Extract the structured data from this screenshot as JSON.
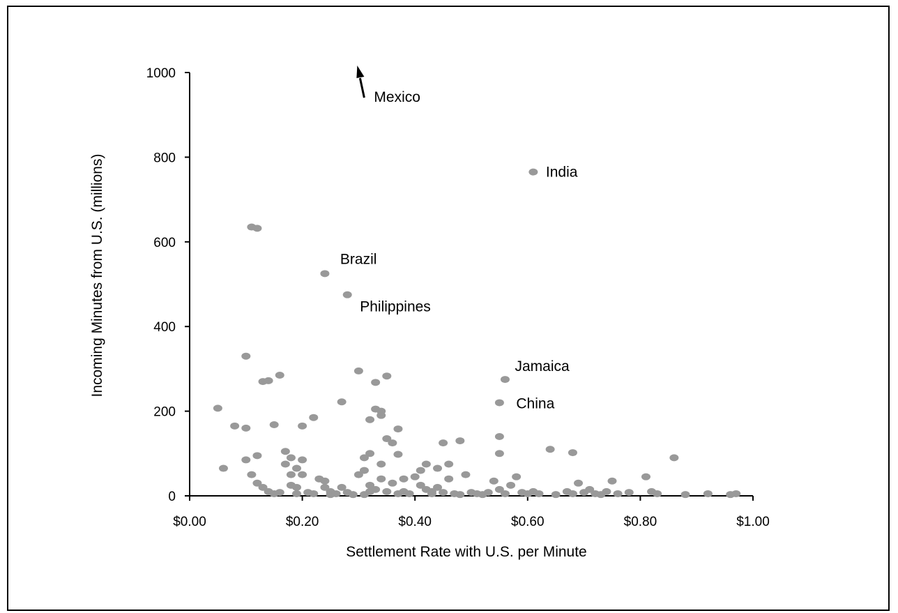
{
  "chart_data": {
    "type": "scatter",
    "title": "",
    "xlabel": "Settlement Rate with U.S. per Minute",
    "ylabel": "Incoming Minutes from U.S. (millions)",
    "xlim": [
      0,
      1
    ],
    "ylim": [
      0,
      1000
    ],
    "x_ticks": [
      {
        "value": 0.0,
        "label": "$0.00"
      },
      {
        "value": 0.2,
        "label": "$0.20"
      },
      {
        "value": 0.4,
        "label": "$0.40"
      },
      {
        "value": 0.6,
        "label": "$0.60"
      },
      {
        "value": 0.8,
        "label": "$0.80"
      },
      {
        "value": 1.0,
        "label": "$1.00"
      }
    ],
    "y_ticks": [
      {
        "value": 0,
        "label": "0"
      },
      {
        "value": 200,
        "label": "200"
      },
      {
        "value": 400,
        "label": "400"
      },
      {
        "value": 600,
        "label": "600"
      },
      {
        "value": 800,
        "label": "800"
      },
      {
        "value": 1000,
        "label": "1000"
      }
    ],
    "grid": false,
    "marker_color": "#999999",
    "labeled_points": [
      {
        "name": "India",
        "x": 0.61,
        "y": 765
      },
      {
        "name": "Brazil",
        "x": 0.24,
        "y": 525
      },
      {
        "name": "Philippines",
        "x": 0.28,
        "y": 475
      },
      {
        "name": "Jamaica",
        "x": 0.56,
        "y": 275
      },
      {
        "name": "China",
        "x": 0.55,
        "y": 220
      }
    ],
    "offscale_point": {
      "name": "Mexico",
      "x": 0.3,
      "y_direction": "above 1000"
    },
    "points": [
      [
        0.05,
        207
      ],
      [
        0.06,
        65
      ],
      [
        0.08,
        165
      ],
      [
        0.1,
        160
      ],
      [
        0.1,
        330
      ],
      [
        0.1,
        85
      ],
      [
        0.11,
        635
      ],
      [
        0.12,
        632
      ],
      [
        0.11,
        50
      ],
      [
        0.12,
        95
      ],
      [
        0.12,
        30
      ],
      [
        0.13,
        270
      ],
      [
        0.13,
        20
      ],
      [
        0.14,
        272
      ],
      [
        0.14,
        10
      ],
      [
        0.15,
        168
      ],
      [
        0.15,
        5
      ],
      [
        0.16,
        285
      ],
      [
        0.16,
        8
      ],
      [
        0.17,
        105
      ],
      [
        0.17,
        75
      ],
      [
        0.18,
        90
      ],
      [
        0.18,
        50
      ],
      [
        0.18,
        25
      ],
      [
        0.19,
        65
      ],
      [
        0.19,
        20
      ],
      [
        0.19,
        5
      ],
      [
        0.2,
        85
      ],
      [
        0.2,
        165
      ],
      [
        0.2,
        50
      ],
      [
        0.21,
        8
      ],
      [
        0.22,
        185
      ],
      [
        0.22,
        5
      ],
      [
        0.23,
        40
      ],
      [
        0.24,
        35
      ],
      [
        0.24,
        20
      ],
      [
        0.25,
        10
      ],
      [
        0.25,
        3
      ],
      [
        0.26,
        5
      ],
      [
        0.27,
        20
      ],
      [
        0.27,
        222
      ],
      [
        0.28,
        8
      ],
      [
        0.29,
        3
      ],
      [
        0.3,
        295
      ],
      [
        0.3,
        50
      ],
      [
        0.31,
        90
      ],
      [
        0.31,
        60
      ],
      [
        0.31,
        3
      ],
      [
        0.32,
        100
      ],
      [
        0.32,
        180
      ],
      [
        0.32,
        25
      ],
      [
        0.32,
        10
      ],
      [
        0.33,
        268
      ],
      [
        0.33,
        205
      ],
      [
        0.33,
        15
      ],
      [
        0.34,
        200
      ],
      [
        0.34,
        190
      ],
      [
        0.34,
        75
      ],
      [
        0.34,
        40
      ],
      [
        0.35,
        283
      ],
      [
        0.35,
        135
      ],
      [
        0.35,
        10
      ],
      [
        0.36,
        125
      ],
      [
        0.36,
        30
      ],
      [
        0.37,
        98
      ],
      [
        0.37,
        158
      ],
      [
        0.37,
        5
      ],
      [
        0.38,
        40
      ],
      [
        0.38,
        10
      ],
      [
        0.39,
        5
      ],
      [
        0.4,
        45
      ],
      [
        0.41,
        60
      ],
      [
        0.41,
        25
      ],
      [
        0.42,
        75
      ],
      [
        0.42,
        15
      ],
      [
        0.43,
        10
      ],
      [
        0.43,
        5
      ],
      [
        0.44,
        65
      ],
      [
        0.44,
        20
      ],
      [
        0.45,
        125
      ],
      [
        0.45,
        8
      ],
      [
        0.46,
        75
      ],
      [
        0.46,
        40
      ],
      [
        0.47,
        5
      ],
      [
        0.48,
        130
      ],
      [
        0.48,
        3
      ],
      [
        0.49,
        50
      ],
      [
        0.5,
        8
      ],
      [
        0.51,
        5
      ],
      [
        0.52,
        3
      ],
      [
        0.53,
        8
      ],
      [
        0.54,
        35
      ],
      [
        0.55,
        140
      ],
      [
        0.55,
        100
      ],
      [
        0.55,
        15
      ],
      [
        0.56,
        5
      ],
      [
        0.57,
        25
      ],
      [
        0.58,
        45
      ],
      [
        0.59,
        8
      ],
      [
        0.6,
        5
      ],
      [
        0.61,
        10
      ],
      [
        0.62,
        5
      ],
      [
        0.64,
        110
      ],
      [
        0.65,
        3
      ],
      [
        0.67,
        10
      ],
      [
        0.68,
        102
      ],
      [
        0.68,
        5
      ],
      [
        0.69,
        30
      ],
      [
        0.7,
        8
      ],
      [
        0.71,
        15
      ],
      [
        0.72,
        5
      ],
      [
        0.73,
        3
      ],
      [
        0.74,
        10
      ],
      [
        0.75,
        35
      ],
      [
        0.76,
        5
      ],
      [
        0.78,
        8
      ],
      [
        0.81,
        45
      ],
      [
        0.82,
        10
      ],
      [
        0.83,
        5
      ],
      [
        0.86,
        90
      ],
      [
        0.88,
        3
      ],
      [
        0.92,
        5
      ],
      [
        0.96,
        3
      ],
      [
        0.97,
        5
      ]
    ]
  }
}
